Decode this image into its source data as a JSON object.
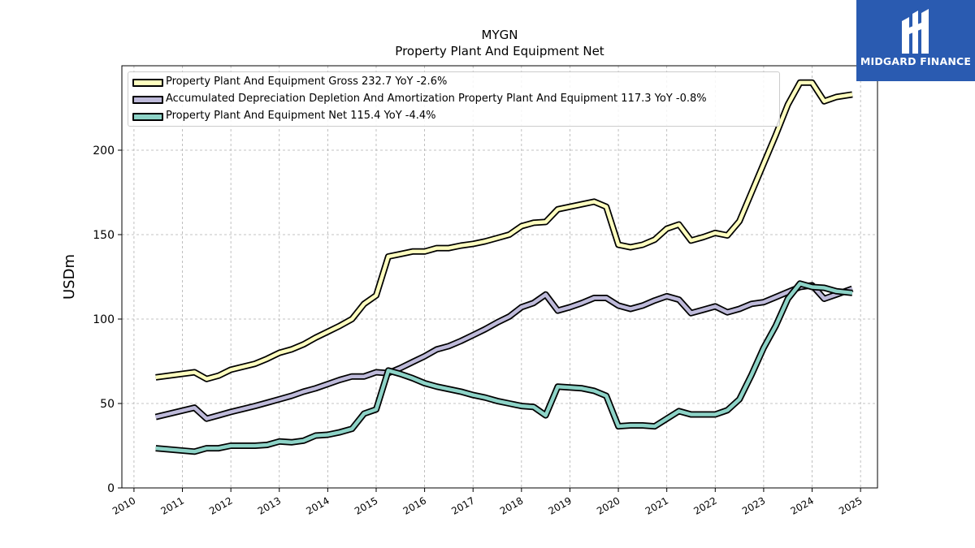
{
  "chart_data": {
    "type": "line",
    "title": "MYGN",
    "subtitle": "Property Plant And Equipment Net",
    "ylabel": "USDm",
    "xlabel": "",
    "xlim": [
      2009.75,
      2025.35
    ],
    "ylim": [
      0,
      250
    ],
    "xticks": [
      "2010",
      "2011",
      "2012",
      "2013",
      "2014",
      "2015",
      "2016",
      "2017",
      "2018",
      "2019",
      "2020",
      "2021",
      "2022",
      "2023",
      "2024",
      "2025"
    ],
    "yticks": [
      0,
      50,
      100,
      150,
      200
    ],
    "grid": true,
    "legend_position": "top-left",
    "series": [
      {
        "name": "Property Plant And Equipment Gross  232.7 YoY -2.6%",
        "color": "#ffffbf",
        "points": [
          [
            2010.45,
            65.5
          ],
          [
            2011.25,
            68.5
          ],
          [
            2011.5,
            64.5
          ],
          [
            2011.75,
            66.5
          ],
          [
            2012.0,
            70
          ],
          [
            2012.5,
            73.5
          ],
          [
            2012.75,
            76.5
          ],
          [
            2013.0,
            80
          ],
          [
            2013.25,
            82
          ],
          [
            2013.5,
            85
          ],
          [
            2013.75,
            89
          ],
          [
            2014.0,
            92.5
          ],
          [
            2014.25,
            96
          ],
          [
            2014.5,
            100
          ],
          [
            2014.75,
            109
          ],
          [
            2015.0,
            114
          ],
          [
            2015.25,
            137
          ],
          [
            2015.5,
            138.5
          ],
          [
            2015.75,
            140
          ],
          [
            2016.0,
            140
          ],
          [
            2016.25,
            142
          ],
          [
            2016.5,
            142
          ],
          [
            2016.75,
            143.5
          ],
          [
            2017.0,
            144.5
          ],
          [
            2017.25,
            146
          ],
          [
            2017.5,
            148
          ],
          [
            2017.75,
            150
          ],
          [
            2018.0,
            155
          ],
          [
            2018.25,
            157
          ],
          [
            2018.5,
            157.5
          ],
          [
            2018.75,
            165
          ],
          [
            2019.0,
            166.5
          ],
          [
            2019.25,
            168
          ],
          [
            2019.5,
            169.5
          ],
          [
            2019.75,
            166.5
          ],
          [
            2020.0,
            144
          ],
          [
            2020.25,
            142.5
          ],
          [
            2020.5,
            144
          ],
          [
            2020.75,
            147
          ],
          [
            2021.0,
            153.5
          ],
          [
            2021.25,
            156
          ],
          [
            2021.5,
            146.5
          ],
          [
            2021.75,
            148.5
          ],
          [
            2022.0,
            151
          ],
          [
            2022.25,
            149.5
          ],
          [
            2022.5,
            158
          ],
          [
            2022.75,
            175
          ],
          [
            2023.0,
            192
          ],
          [
            2023.25,
            209
          ],
          [
            2023.5,
            227
          ],
          [
            2023.75,
            240
          ],
          [
            2024.0,
            240
          ],
          [
            2024.25,
            229
          ],
          [
            2024.5,
            231.5
          ],
          [
            2024.83,
            233
          ]
        ]
      },
      {
        "name": "Accumulated Depreciation Depletion And Amortization Property Plant And Equipment  117.3 YoY -0.8%",
        "color": "#bebada",
        "points": [
          [
            2010.45,
            42
          ],
          [
            2011.25,
            47.5
          ],
          [
            2011.5,
            41
          ],
          [
            2011.75,
            43
          ],
          [
            2012.0,
            45
          ],
          [
            2012.5,
            48.5
          ],
          [
            2012.75,
            50.5
          ],
          [
            2013.0,
            52.5
          ],
          [
            2013.25,
            54.5
          ],
          [
            2013.5,
            57
          ],
          [
            2013.75,
            59
          ],
          [
            2014.0,
            61.5
          ],
          [
            2014.25,
            64
          ],
          [
            2014.5,
            66
          ],
          [
            2014.75,
            66
          ],
          [
            2015.0,
            68.5
          ],
          [
            2015.25,
            68
          ],
          [
            2015.5,
            71
          ],
          [
            2015.75,
            74.5
          ],
          [
            2016.0,
            78
          ],
          [
            2016.25,
            82
          ],
          [
            2016.5,
            84
          ],
          [
            2016.75,
            87
          ],
          [
            2017.0,
            90.5
          ],
          [
            2017.25,
            94
          ],
          [
            2017.5,
            98
          ],
          [
            2017.75,
            101.5
          ],
          [
            2018.0,
            107
          ],
          [
            2018.25,
            109.5
          ],
          [
            2018.5,
            114.5
          ],
          [
            2018.75,
            105
          ],
          [
            2019.0,
            107
          ],
          [
            2019.25,
            109.5
          ],
          [
            2019.5,
            112.5
          ],
          [
            2019.75,
            112.5
          ],
          [
            2020.0,
            108
          ],
          [
            2020.25,
            106
          ],
          [
            2020.5,
            108
          ],
          [
            2020.75,
            111
          ],
          [
            2021.0,
            113.5
          ],
          [
            2021.25,
            111.5
          ],
          [
            2021.5,
            103.5
          ],
          [
            2021.75,
            105.5
          ],
          [
            2022.0,
            107.5
          ],
          [
            2022.25,
            104
          ],
          [
            2022.5,
            106
          ],
          [
            2022.75,
            109
          ],
          [
            2023.0,
            110
          ],
          [
            2023.25,
            113
          ],
          [
            2023.5,
            116
          ],
          [
            2023.75,
            119
          ],
          [
            2024.0,
            120
          ],
          [
            2024.25,
            112
          ],
          [
            2024.5,
            114.5
          ],
          [
            2024.83,
            118
          ]
        ]
      },
      {
        "name": "Property Plant And Equipment Net  115.4 YoY -4.4%",
        "color": "#8dd3c7",
        "points": [
          [
            2010.45,
            23.5
          ],
          [
            2011.25,
            21.5
          ],
          [
            2011.5,
            23.5
          ],
          [
            2011.75,
            23.5
          ],
          [
            2012.0,
            25
          ],
          [
            2012.5,
            25
          ],
          [
            2012.75,
            25.5
          ],
          [
            2013.0,
            27.5
          ],
          [
            2013.25,
            27
          ],
          [
            2013.5,
            28
          ],
          [
            2013.75,
            31
          ],
          [
            2014.0,
            31.5
          ],
          [
            2014.25,
            33
          ],
          [
            2014.5,
            35
          ],
          [
            2014.75,
            44
          ],
          [
            2015.0,
            46.5
          ],
          [
            2015.25,
            69.5
          ],
          [
            2015.5,
            67.5
          ],
          [
            2015.75,
            65
          ],
          [
            2016.0,
            62
          ],
          [
            2016.25,
            60
          ],
          [
            2016.5,
            58.5
          ],
          [
            2016.75,
            57
          ],
          [
            2017.0,
            55
          ],
          [
            2017.25,
            53.5
          ],
          [
            2017.5,
            51.5
          ],
          [
            2017.75,
            50
          ],
          [
            2018.0,
            48.5
          ],
          [
            2018.25,
            48
          ],
          [
            2018.5,
            43
          ],
          [
            2018.75,
            60
          ],
          [
            2019.0,
            59.5
          ],
          [
            2019.25,
            59
          ],
          [
            2019.5,
            57.5
          ],
          [
            2019.75,
            54.5
          ],
          [
            2020.0,
            36.5
          ],
          [
            2020.25,
            37
          ],
          [
            2020.5,
            37
          ],
          [
            2020.75,
            36.5
          ],
          [
            2021.0,
            41
          ],
          [
            2021.25,
            45.5
          ],
          [
            2021.5,
            43.5
          ],
          [
            2021.75,
            43.5
          ],
          [
            2022.0,
            43.5
          ],
          [
            2022.25,
            46
          ],
          [
            2022.5,
            52.5
          ],
          [
            2022.75,
            67
          ],
          [
            2023.0,
            83
          ],
          [
            2023.25,
            96
          ],
          [
            2023.5,
            112
          ],
          [
            2023.75,
            121
          ],
          [
            2024.0,
            119
          ],
          [
            2024.25,
            118.5
          ],
          [
            2024.5,
            116.5
          ],
          [
            2024.83,
            115.5
          ]
        ]
      }
    ]
  },
  "brand": {
    "name": "MIDGARD FINANCE",
    "color": "#2a5bb1"
  }
}
